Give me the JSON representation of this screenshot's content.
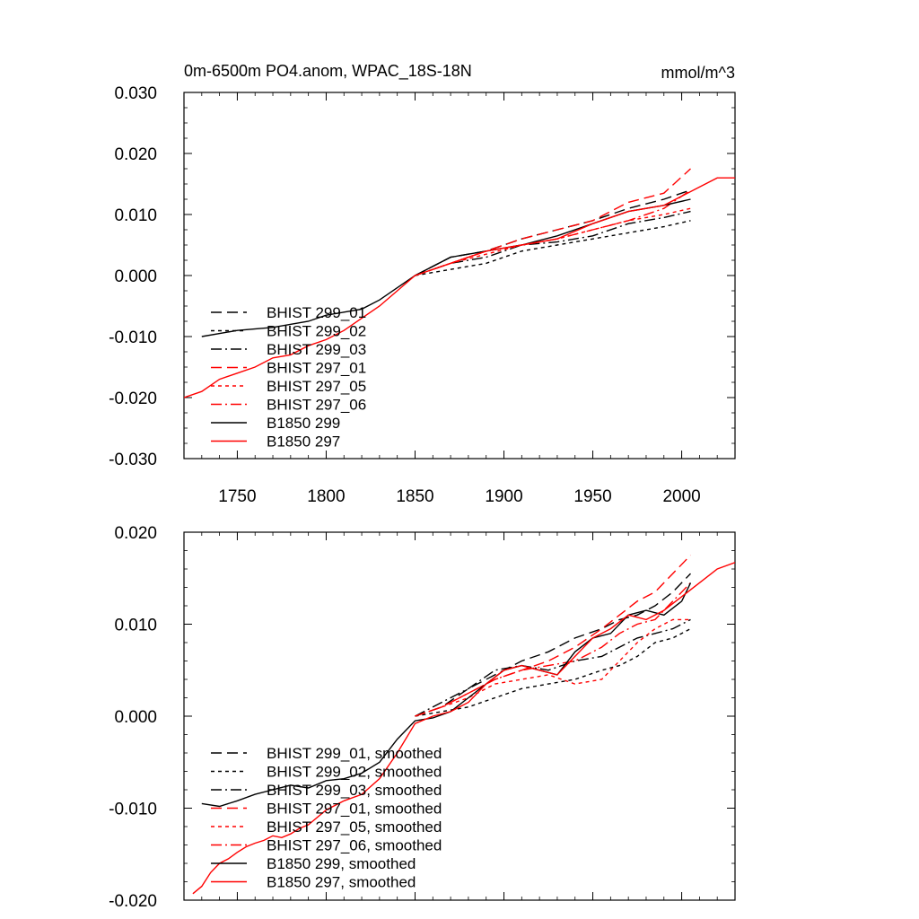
{
  "chart_data": [
    {
      "type": "line",
      "title": "0m-6500m PO4.anom, WPAC_18S-18N",
      "units": "mmol/m^3",
      "xlim": [
        1720,
        2030
      ],
      "ylim": [
        -0.03,
        0.03
      ],
      "xticks": [
        1750,
        1800,
        1850,
        1900,
        1950,
        2000
      ],
      "xtick_labels": [
        "1750",
        "1800",
        "1850",
        "1900",
        "1950",
        "2000"
      ],
      "yticks": [
        -0.03,
        -0.02,
        -0.01,
        0.0,
        0.01,
        0.02,
        0.03
      ],
      "ytick_labels": [
        "-0.030",
        "-0.020",
        "-0.010",
        "0.000",
        "0.010",
        "0.020",
        "0.030"
      ],
      "grid": false,
      "legend_position": "lower-left",
      "series": [
        {
          "name": "BHIST 299_01",
          "color": "#000000",
          "dash": "dashed",
          "x": [
            1850,
            1870,
            1890,
            1910,
            1930,
            1950,
            1970,
            1990,
            2005
          ],
          "y": [
            0.0,
            0.003,
            0.004,
            0.006,
            0.0075,
            0.009,
            0.011,
            0.0125,
            0.014
          ]
        },
        {
          "name": "BHIST 299_02",
          "color": "#000000",
          "dash": "dotted",
          "x": [
            1850,
            1870,
            1890,
            1910,
            1930,
            1950,
            1970,
            1990,
            2005
          ],
          "y": [
            0.0,
            0.001,
            0.002,
            0.004,
            0.005,
            0.006,
            0.007,
            0.008,
            0.009
          ]
        },
        {
          "name": "BHIST 299_03",
          "color": "#000000",
          "dash": "dashdot",
          "x": [
            1850,
            1870,
            1890,
            1910,
            1930,
            1950,
            1970,
            1990,
            2005
          ],
          "y": [
            0.0,
            0.002,
            0.003,
            0.005,
            0.0055,
            0.0065,
            0.0085,
            0.0095,
            0.0105
          ]
        },
        {
          "name": "BHIST 297_01",
          "color": "#ff0000",
          "dash": "dashed",
          "x": [
            1850,
            1870,
            1890,
            1910,
            1930,
            1950,
            1970,
            1990,
            2005
          ],
          "y": [
            0.0,
            0.002,
            0.004,
            0.006,
            0.0075,
            0.009,
            0.012,
            0.0135,
            0.0175
          ]
        },
        {
          "name": "BHIST 297_05",
          "color": "#ff0000",
          "dash": "dotted",
          "x": [
            1850,
            1870,
            1890,
            1910,
            1930,
            1950,
            1970,
            1990,
            2005
          ],
          "y": [
            0.0,
            0.002,
            0.0035,
            0.005,
            0.006,
            0.0075,
            0.009,
            0.01,
            0.011
          ]
        },
        {
          "name": "BHIST 297_06",
          "color": "#ff0000",
          "dash": "dashdot",
          "x": [
            1850,
            1870,
            1890,
            1910,
            1930,
            1950,
            1970,
            1990,
            2005
          ],
          "y": [
            0.0,
            0.002,
            0.004,
            0.005,
            0.006,
            0.0075,
            0.009,
            0.011,
            0.014
          ]
        },
        {
          "name": "B1850 299",
          "color": "#000000",
          "dash": "solid",
          "x": [
            1730,
            1750,
            1770,
            1790,
            1800,
            1810,
            1820,
            1830,
            1840,
            1850,
            1870,
            1890,
            1910,
            1930,
            1950,
            1970,
            1990,
            2005
          ],
          "y": [
            -0.01,
            -0.009,
            -0.0085,
            -0.0075,
            -0.0065,
            -0.006,
            -0.0055,
            -0.004,
            -0.002,
            0.0,
            0.003,
            0.004,
            0.005,
            0.0065,
            0.0085,
            0.0105,
            0.0115,
            0.0125
          ]
        },
        {
          "name": "B1850 297",
          "color": "#ff0000",
          "dash": "solid",
          "x": [
            1720,
            1730,
            1740,
            1750,
            1760,
            1770,
            1780,
            1790,
            1800,
            1810,
            1820,
            1830,
            1840,
            1850,
            1870,
            1890,
            1910,
            1930,
            1950,
            1970,
            1990,
            2010,
            2020,
            2030
          ],
          "y": [
            -0.02,
            -0.019,
            -0.017,
            -0.016,
            -0.015,
            -0.0135,
            -0.013,
            -0.0115,
            -0.0105,
            -0.009,
            -0.007,
            -0.005,
            -0.0025,
            0.0,
            0.002,
            0.004,
            0.005,
            0.006,
            0.0085,
            0.0105,
            0.0115,
            0.0145,
            0.016,
            0.016
          ]
        }
      ]
    },
    {
      "type": "line",
      "xlim": [
        1720,
        2030
      ],
      "ylim": [
        -0.02,
        0.02
      ],
      "xticks": [
        1750,
        1800,
        1850,
        1900,
        1950,
        2000
      ],
      "yticks": [
        -0.02,
        -0.01,
        0.0,
        0.01,
        0.02
      ],
      "ytick_labels": [
        "-0.020",
        "-0.010",
        "0.000",
        "0.010",
        "0.020"
      ],
      "grid": false,
      "legend_position": "lower-left",
      "series": [
        {
          "name": "BHIST 299_01, smoothed",
          "color": "#000000",
          "dash": "dashed",
          "x": [
            1850,
            1865,
            1880,
            1895,
            1910,
            1925,
            1940,
            1955,
            1965,
            1975,
            1985,
            1995,
            2005
          ],
          "y": [
            0.0,
            0.001,
            0.003,
            0.0045,
            0.006,
            0.007,
            0.0085,
            0.0095,
            0.0105,
            0.011,
            0.012,
            0.0135,
            0.0155
          ]
        },
        {
          "name": "BHIST 299_02, smoothed",
          "color": "#000000",
          "dash": "dotted",
          "x": [
            1850,
            1865,
            1880,
            1895,
            1910,
            1925,
            1940,
            1955,
            1965,
            1975,
            1985,
            1995,
            2005
          ],
          "y": [
            0.0,
            0.0005,
            0.001,
            0.002,
            0.003,
            0.0035,
            0.004,
            0.005,
            0.0055,
            0.0065,
            0.008,
            0.0085,
            0.0095
          ]
        },
        {
          "name": "BHIST 299_03, smoothed",
          "color": "#000000",
          "dash": "dashdot",
          "x": [
            1850,
            1865,
            1880,
            1895,
            1910,
            1925,
            1940,
            1955,
            1965,
            1975,
            1985,
            1995,
            2005
          ],
          "y": [
            0.0,
            0.0015,
            0.003,
            0.005,
            0.0055,
            0.005,
            0.006,
            0.0065,
            0.0075,
            0.0085,
            0.009,
            0.0095,
            0.0105
          ]
        },
        {
          "name": "BHIST 297_01, smoothed",
          "color": "#ff0000",
          "dash": "dashed",
          "x": [
            1850,
            1865,
            1880,
            1895,
            1910,
            1925,
            1940,
            1955,
            1965,
            1975,
            1985,
            1995,
            2005
          ],
          "y": [
            0.0,
            0.001,
            0.0025,
            0.004,
            0.005,
            0.006,
            0.0075,
            0.0095,
            0.011,
            0.0125,
            0.0135,
            0.0155,
            0.0175
          ]
        },
        {
          "name": "BHIST 297_05, smoothed",
          "color": "#ff0000",
          "dash": "dotted",
          "x": [
            1850,
            1865,
            1880,
            1895,
            1910,
            1925,
            1940,
            1955,
            1965,
            1975,
            1985,
            1995,
            2005
          ],
          "y": [
            0.0,
            0.001,
            0.002,
            0.0035,
            0.004,
            0.0045,
            0.0035,
            0.004,
            0.006,
            0.008,
            0.0095,
            0.0105,
            0.0105
          ]
        },
        {
          "name": "BHIST 297_06, smoothed",
          "color": "#ff0000",
          "dash": "dashdot",
          "x": [
            1850,
            1865,
            1880,
            1895,
            1910,
            1925,
            1940,
            1955,
            1965,
            1975,
            1985,
            1995,
            2005
          ],
          "y": [
            0.0,
            0.001,
            0.0025,
            0.004,
            0.005,
            0.0055,
            0.006,
            0.0075,
            0.009,
            0.01,
            0.0105,
            0.0125,
            0.0145
          ]
        },
        {
          "name": "B1850 299, smoothed",
          "color": "#000000",
          "dash": "solid",
          "x": [
            1730,
            1740,
            1750,
            1760,
            1770,
            1780,
            1790,
            1800,
            1810,
            1820,
            1830,
            1840,
            1850,
            1860,
            1870,
            1880,
            1890,
            1900,
            1910,
            1920,
            1930,
            1940,
            1950,
            1960,
            1970,
            1980,
            1990,
            2000,
            2005
          ],
          "y": [
            -0.0095,
            -0.0098,
            -0.0092,
            -0.0085,
            -0.008,
            -0.0075,
            -0.0078,
            -0.007,
            -0.0068,
            -0.0062,
            -0.005,
            -0.0025,
            -0.0005,
            -0.0002,
            0.0005,
            0.002,
            0.0035,
            0.005,
            0.0055,
            0.005,
            0.0045,
            0.007,
            0.0085,
            0.009,
            0.011,
            0.0115,
            0.011,
            0.0125,
            0.0145
          ]
        },
        {
          "name": "B1850 297, smoothed",
          "color": "#ff0000",
          "dash": "solid",
          "x": [
            1725,
            1730,
            1735,
            1740,
            1745,
            1750,
            1755,
            1760,
            1765,
            1770,
            1775,
            1780,
            1785,
            1790,
            1800,
            1810,
            1820,
            1830,
            1840,
            1850,
            1860,
            1870,
            1880,
            1890,
            1900,
            1910,
            1920,
            1930,
            1940,
            1950,
            1960,
            1970,
            1980,
            1990,
            2000,
            2010,
            2020,
            2030
          ],
          "y": [
            -0.0193,
            -0.0185,
            -0.017,
            -0.016,
            -0.0155,
            -0.0148,
            -0.0142,
            -0.0138,
            -0.0135,
            -0.013,
            -0.0132,
            -0.0128,
            -0.0122,
            -0.0118,
            -0.0102,
            -0.0092,
            -0.0085,
            -0.0068,
            -0.004,
            -0.0008,
            0.0,
            0.0005,
            0.0015,
            0.0035,
            0.005,
            0.0055,
            0.005,
            0.0045,
            0.0065,
            0.0085,
            0.0095,
            0.011,
            0.0105,
            0.0115,
            0.013,
            0.0145,
            0.016,
            0.0167
          ]
        }
      ]
    }
  ]
}
